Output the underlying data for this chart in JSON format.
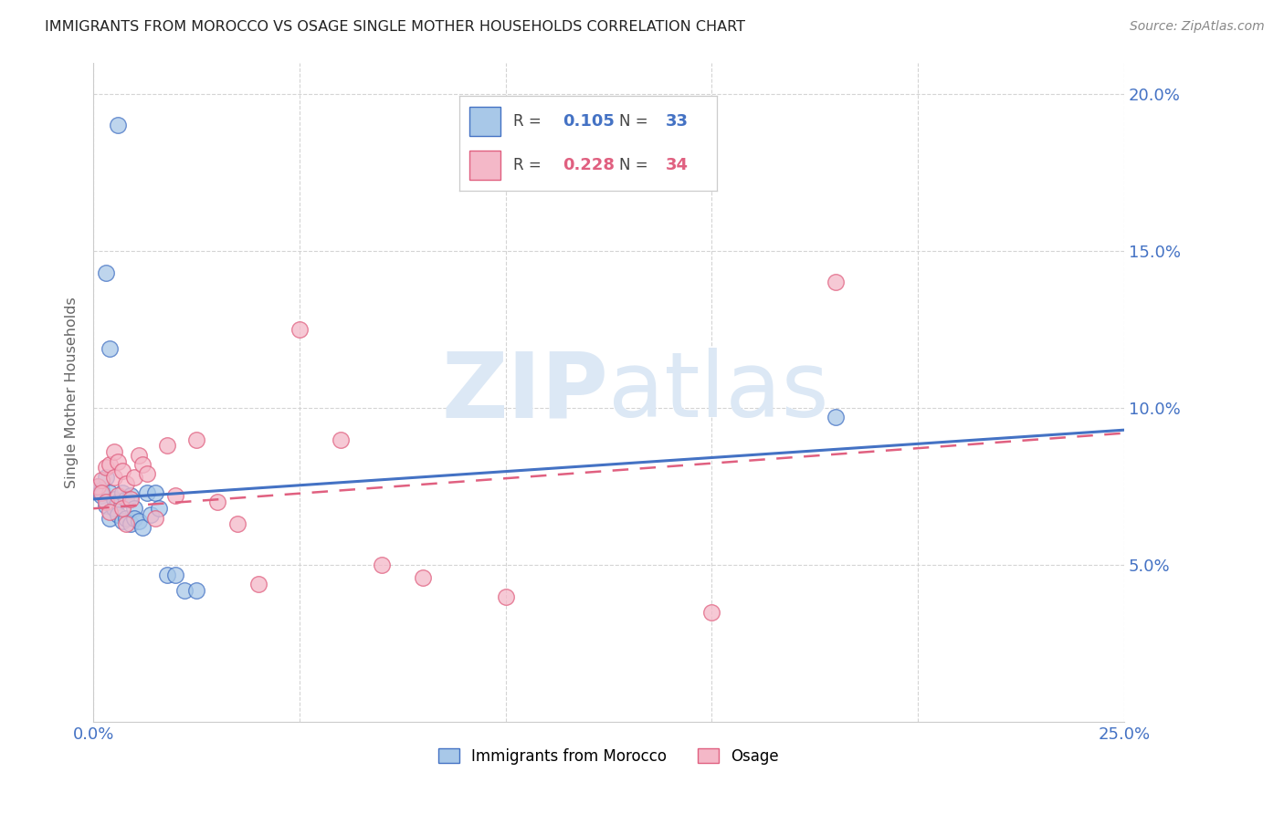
{
  "title": "IMMIGRANTS FROM MOROCCO VS OSAGE SINGLE MOTHER HOUSEHOLDS CORRELATION CHART",
  "source": "Source: ZipAtlas.com",
  "ylabel": "Single Mother Households",
  "xlim": [
    0.0,
    0.25
  ],
  "ylim": [
    0.0,
    0.21
  ],
  "xtick_positions": [
    0.0,
    0.05,
    0.1,
    0.15,
    0.2,
    0.25
  ],
  "xticklabels": [
    "0.0%",
    "",
    "",
    "",
    "",
    "25.0%"
  ],
  "ytick_positions": [
    0.05,
    0.1,
    0.15,
    0.2
  ],
  "yticklabels": [
    "5.0%",
    "10.0%",
    "15.0%",
    "20.0%"
  ],
  "legend1_R": "0.105",
  "legend1_N": "33",
  "legend2_R": "0.228",
  "legend2_N": "34",
  "color_blue_fill": "#a8c8e8",
  "color_blue_edge": "#4472c4",
  "color_pink_fill": "#f4b8c8",
  "color_pink_edge": "#e06080",
  "color_blue_line": "#4472c4",
  "color_pink_line": "#e06080",
  "color_grid": "#d0d0d0",
  "color_axis_text": "#4472c4",
  "watermark_color": "#dce8f5",
  "blue_x": [
    0.001,
    0.002,
    0.002,
    0.003,
    0.003,
    0.004,
    0.004,
    0.005,
    0.005,
    0.006,
    0.006,
    0.007,
    0.007,
    0.008,
    0.008,
    0.009,
    0.009,
    0.01,
    0.01,
    0.011,
    0.012,
    0.013,
    0.014,
    0.015,
    0.016,
    0.018,
    0.02,
    0.022,
    0.025,
    0.003,
    0.004,
    0.18,
    0.006
  ],
  "blue_y": [
    0.075,
    0.074,
    0.072,
    0.078,
    0.069,
    0.073,
    0.065,
    0.071,
    0.068,
    0.07,
    0.066,
    0.073,
    0.064,
    0.071,
    0.065,
    0.072,
    0.063,
    0.068,
    0.065,
    0.064,
    0.062,
    0.073,
    0.066,
    0.073,
    0.068,
    0.047,
    0.047,
    0.042,
    0.042,
    0.143,
    0.119,
    0.097,
    0.19
  ],
  "pink_x": [
    0.001,
    0.002,
    0.002,
    0.003,
    0.003,
    0.004,
    0.004,
    0.005,
    0.005,
    0.006,
    0.006,
    0.007,
    0.007,
    0.008,
    0.008,
    0.009,
    0.01,
    0.011,
    0.012,
    0.013,
    0.015,
    0.018,
    0.02,
    0.025,
    0.03,
    0.035,
    0.05,
    0.06,
    0.08,
    0.1,
    0.15,
    0.18,
    0.04,
    0.07
  ],
  "pink_y": [
    0.075,
    0.077,
    0.073,
    0.081,
    0.07,
    0.082,
    0.067,
    0.086,
    0.078,
    0.083,
    0.072,
    0.08,
    0.068,
    0.076,
    0.063,
    0.071,
    0.078,
    0.085,
    0.082,
    0.079,
    0.065,
    0.088,
    0.072,
    0.09,
    0.07,
    0.063,
    0.125,
    0.09,
    0.046,
    0.04,
    0.035,
    0.14,
    0.044,
    0.05
  ],
  "blue_line_x0": 0.0,
  "blue_line_x1": 0.25,
  "blue_line_y0": 0.071,
  "blue_line_y1": 0.093,
  "pink_line_x0": 0.0,
  "pink_line_x1": 0.25,
  "pink_line_y0": 0.068,
  "pink_line_y1": 0.092
}
